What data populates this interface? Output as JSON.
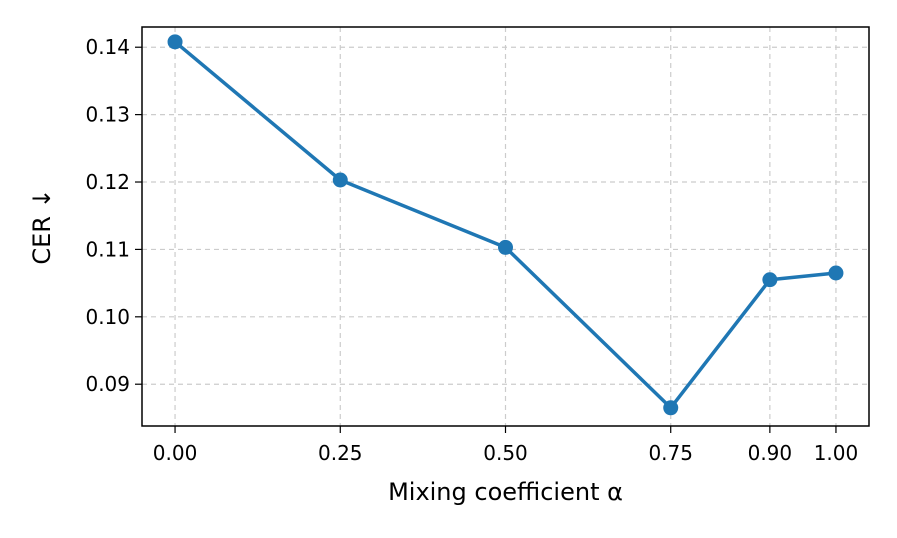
{
  "chart_data": {
    "type": "line",
    "title": "",
    "xlabel": "Mixing coefficient α",
    "ylabel": "CER ↓",
    "x": [
      0.0,
      0.25,
      0.5,
      0.75,
      0.9,
      1.0
    ],
    "x_tick_labels": [
      "0.00",
      "0.25",
      "0.50",
      "0.75",
      "0.90",
      "1.00"
    ],
    "y_ticks": [
      0.09,
      0.1,
      0.11,
      0.12,
      0.13,
      0.14
    ],
    "y_tick_labels": [
      "0.09",
      "0.10",
      "0.11",
      "0.12",
      "0.13",
      "0.14"
    ],
    "xlim": [
      -0.05,
      1.05
    ],
    "ylim": [
      0.0838,
      0.143
    ],
    "grid": true,
    "grid_style": "dashed",
    "series": [
      {
        "values": [
          0.1408,
          0.1203,
          0.1103,
          0.0865,
          0.1055,
          0.1065
        ],
        "color": "#1f77b4",
        "marker": "circle"
      }
    ]
  }
}
